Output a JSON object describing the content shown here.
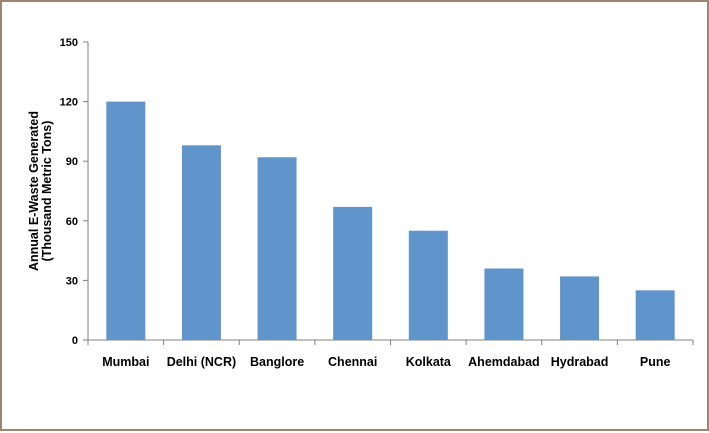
{
  "chart_data": {
    "type": "bar",
    "title": "",
    "xlabel": "",
    "ylabel_lines": [
      "Annual E-Waste Generated",
      "(Thousand Metric Tons)"
    ],
    "categories": [
      "Mumbai",
      "Delhi (NCR)",
      "Banglore",
      "Chennai",
      "Kolkata",
      "Ahemdabad",
      "Hydrabad",
      "Pune"
    ],
    "values": [
      120,
      98,
      92,
      67,
      55,
      36,
      32,
      25
    ],
    "ylim": [
      0,
      150
    ],
    "yticks": [
      "0",
      "30",
      "60",
      "90",
      "120",
      "150"
    ],
    "grid": false,
    "legend": "none",
    "bar_color": "#6095cb",
    "axis_color": "#808080"
  }
}
